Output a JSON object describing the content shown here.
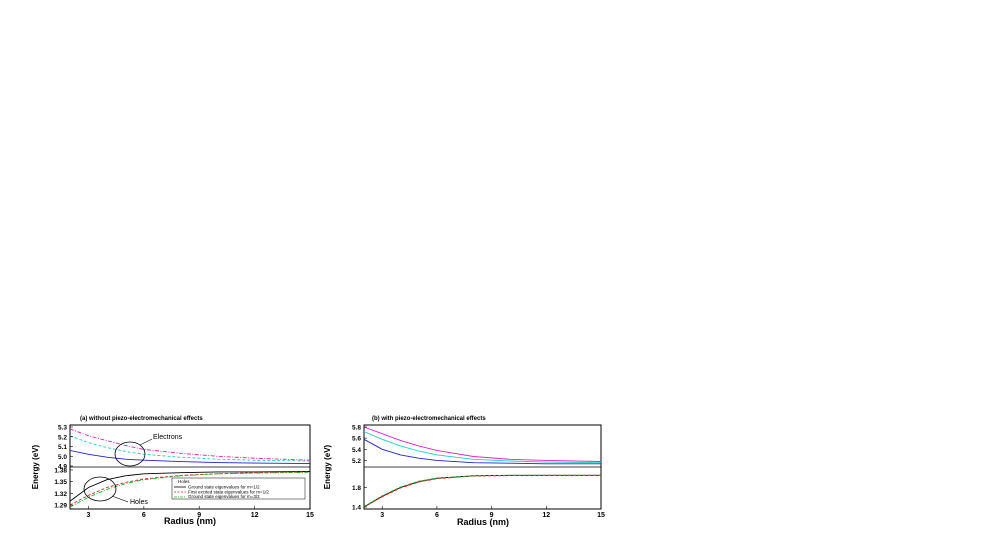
{
  "chart_data": [
    {
      "type": "line",
      "title": "(a) without piezo-electromechanical effects",
      "xlabel": "Radius (nm)",
      "ylabel": "Energy (eV)",
      "xlim": [
        2,
        15
      ],
      "xticks": [
        "3",
        "6",
        "9",
        "12",
        "15"
      ],
      "broken_axis": true,
      "upper": {
        "ylim": [
          4.9,
          5.3
        ],
        "yticks": [
          "4.9",
          "5.0",
          "5.1",
          "5.2",
          "5.3"
        ],
        "series": [
          {
            "color": "#2222cc",
            "dash": "solid",
            "x": [
              2,
              3,
              4,
              5,
              6,
              8,
              10,
              12,
              15
            ],
            "y": [
              5.06,
              5.02,
              4.99,
              4.97,
              4.96,
              4.945,
              4.935,
              4.93,
              4.925
            ]
          },
          {
            "color": "#22cccc",
            "dash": "dash",
            "x": [
              2,
              3,
              4,
              5,
              6,
              8,
              10,
              12,
              15
            ],
            "y": [
              5.21,
              5.14,
              5.09,
              5.05,
              5.02,
              4.99,
              4.97,
              4.96,
              4.95
            ]
          },
          {
            "color": "#dd22aa",
            "dash": "dashdot",
            "x": [
              2,
              3,
              4,
              5,
              6,
              8,
              10,
              12,
              15
            ],
            "y": [
              5.28,
              5.21,
              5.16,
              5.11,
              5.07,
              5.03,
              5.0,
              4.98,
              4.96
            ]
          }
        ]
      },
      "lower": {
        "ylim": [
          1.285,
          1.385
        ],
        "yticks": [
          "1.29",
          "1.32",
          "1.35",
          "1.38"
        ],
        "series": [
          {
            "color": "#000000",
            "dash": "solid",
            "x": [
              2,
              3,
              4,
              5,
              6,
              8,
              10,
              12,
              15
            ],
            "y": [
              1.3,
              1.335,
              1.355,
              1.365,
              1.37,
              1.373,
              1.375,
              1.375,
              1.376
            ]
          },
          {
            "color": "#dd2222",
            "dash": "dash",
            "x": [
              2,
              3,
              4,
              5,
              6,
              8,
              10,
              12,
              15
            ],
            "y": [
              1.29,
              1.315,
              1.335,
              1.348,
              1.357,
              1.366,
              1.37,
              1.373,
              1.375
            ]
          },
          {
            "color": "#22aa22",
            "dash": "dashdot",
            "x": [
              2,
              3,
              4,
              5,
              6,
              8,
              10,
              12,
              15
            ],
            "y": [
              1.285,
              1.31,
              1.33,
              1.345,
              1.355,
              1.365,
              1.37,
              1.372,
              1.374
            ]
          }
        ]
      },
      "annotations": [
        "Electrons",
        "Holes"
      ],
      "legend": {
        "title": "Holes",
        "entries": [
          "Ground state eigenvalues for m=1/2",
          "First excited state eigenvalues for m=1/2",
          "Ground state eigenvalues for m=3/2"
        ]
      }
    },
    {
      "type": "line",
      "title": "(b) with piezo-electromechanical effects",
      "xlabel": "Radius (nm)",
      "ylabel": "Energy (eV)",
      "xlim": [
        2,
        15
      ],
      "xticks": [
        "3",
        "6",
        "9",
        "12",
        "15"
      ],
      "broken_axis": true,
      "upper": {
        "ylim": [
          5.1,
          5.8
        ],
        "yticks": [
          "5.2",
          "5.4",
          "5.6",
          "5.8"
        ],
        "series": [
          {
            "color": "#dd22cc",
            "dash": "solid",
            "x": [
              2,
              3,
              4,
              5,
              6,
              8,
              10,
              12,
              15
            ],
            "y": [
              5.82,
              5.68,
              5.56,
              5.46,
              5.38,
              5.27,
              5.22,
              5.2,
              5.18
            ]
          },
          {
            "color": "#22cccc",
            "dash": "solid",
            "x": [
              2,
              3,
              4,
              5,
              6,
              8,
              10,
              12,
              15
            ],
            "y": [
              5.72,
              5.58,
              5.46,
              5.37,
              5.3,
              5.22,
              5.19,
              5.17,
              5.16
            ]
          },
          {
            "color": "#2222cc",
            "dash": "solid",
            "x": [
              2,
              3,
              4,
              5,
              6,
              8,
              10,
              12,
              15
            ],
            "y": [
              5.58,
              5.4,
              5.3,
              5.24,
              5.2,
              5.16,
              5.15,
              5.14,
              5.14
            ]
          }
        ]
      },
      "lower": {
        "ylim": [
          1.4,
          2.2
        ],
        "yticks": [
          "1.4",
          "1.8"
        ],
        "series": [
          {
            "color": "#000000",
            "dash": "solid",
            "x": [
              2,
              3,
              4,
              5,
              6,
              8,
              10,
              12,
              15
            ],
            "y": [
              1.4,
              1.62,
              1.8,
              1.92,
              1.99,
              2.04,
              2.05,
              2.05,
              2.05
            ]
          },
          {
            "color": "#dd2222",
            "dash": "dash",
            "x": [
              2,
              3,
              4,
              5,
              6,
              8,
              10,
              12,
              15
            ],
            "y": [
              1.4,
              1.61,
              1.79,
              1.91,
              1.98,
              2.035,
              2.045,
              2.05,
              2.05
            ]
          },
          {
            "color": "#22aa22",
            "dash": "dash",
            "x": [
              2,
              3,
              4,
              5,
              6,
              8,
              10,
              12,
              15
            ],
            "y": [
              1.41,
              1.63,
              1.81,
              1.93,
              1.99,
              2.04,
              2.05,
              2.05,
              2.05
            ]
          }
        ]
      }
    }
  ]
}
